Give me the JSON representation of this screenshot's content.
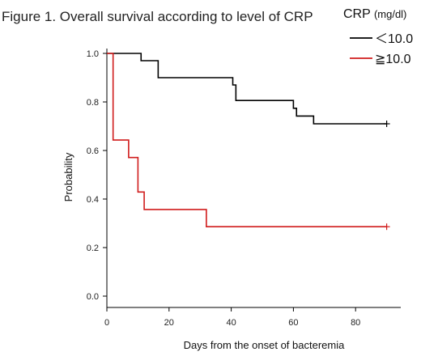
{
  "title": "Figure 1. Overall survival  according to level of  CRP",
  "legend": {
    "title_main": "CRP ",
    "title_unit": "(mg/dl)",
    "position": "top-right"
  },
  "chart_data": {
    "type": "line",
    "step": true,
    "xlabel": "Days from the onset of bacteremia",
    "ylabel": "Probability",
    "xlim": [
      0,
      95
    ],
    "ylim": [
      0,
      1.0
    ],
    "xticks": [
      "0",
      "20",
      "40",
      "60",
      "80"
    ],
    "yticks": [
      "0.0",
      "0.2",
      "0.4",
      "0.6",
      "0.8",
      "1.0"
    ],
    "grid": false,
    "series": [
      {
        "name": "＜10.0",
        "color": "#000000",
        "x": [
          0,
          11,
          16.5,
          40.5,
          41.5,
          60,
          61,
          66.5,
          90
        ],
        "y": [
          1.0,
          0.97,
          0.9,
          0.87,
          0.806,
          0.774,
          0.742,
          0.71,
          0.71
        ],
        "censor_x": [
          90
        ]
      },
      {
        "name": "≧10.0",
        "color": "#d01c1c",
        "x": [
          0,
          2,
          7,
          10,
          12,
          32,
          90
        ],
        "y": [
          1.0,
          0.643,
          0.571,
          0.429,
          0.357,
          0.286,
          0.286
        ],
        "censor_x": [
          90
        ]
      }
    ]
  }
}
